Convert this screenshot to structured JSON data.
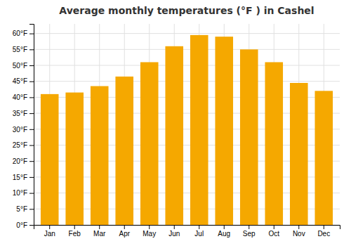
{
  "chart_data": {
    "type": "bar",
    "title": "Average monthly temperatures (°F ) in Cashel",
    "categories": [
      "Jan",
      "Feb",
      "Mar",
      "Apr",
      "May",
      "Jun",
      "Jul",
      "Aug",
      "Sep",
      "Oct",
      "Nov",
      "Dec"
    ],
    "values": [
      41,
      41.5,
      43.5,
      46.5,
      51,
      56,
      59.5,
      59,
      55,
      51,
      44.5,
      42
    ],
    "color": "#F5A800",
    "ylim": [
      0,
      63
    ],
    "yticks": [
      {
        "value": 0,
        "label": "0°F"
      },
      {
        "value": 5,
        "label": "5°F"
      },
      {
        "value": 10,
        "label": "10°F"
      },
      {
        "value": 15,
        "label": "15°F"
      },
      {
        "value": 20,
        "label": "20°F"
      },
      {
        "value": 25,
        "label": "25°F"
      },
      {
        "value": 30,
        "label": "30°F"
      },
      {
        "value": 35,
        "label": "35°F"
      },
      {
        "value": 40,
        "label": "40°F"
      },
      {
        "value": 45,
        "label": "45°F"
      },
      {
        "value": 50,
        "label": "50°F"
      },
      {
        "value": 55,
        "label": "55°F"
      },
      {
        "value": 60,
        "label": "60°F"
      }
    ],
    "grid": true
  }
}
